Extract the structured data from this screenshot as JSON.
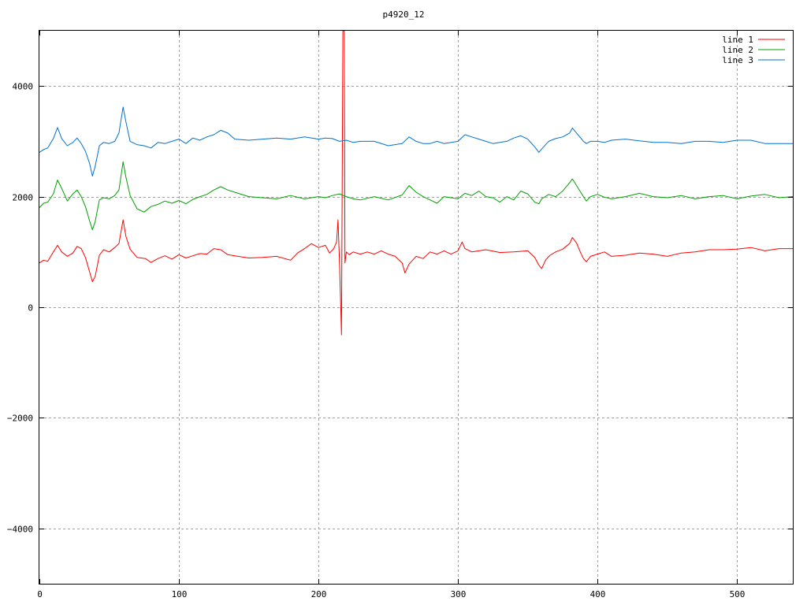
{
  "chart_data": {
    "type": "line",
    "title": "p4920_12",
    "xlabel": "",
    "ylabel": "",
    "xlim": [
      0,
      540
    ],
    "ylim": [
      -5000,
      5000
    ],
    "grid": true,
    "legend_position": "top-right",
    "x_ticks": [
      0,
      100,
      200,
      300,
      400,
      500
    ],
    "y_ticks": [
      -4000,
      -2000,
      0,
      2000,
      4000
    ],
    "x_tick_labels": [
      "0",
      "100",
      "200",
      "300",
      "400",
      "500"
    ],
    "y_tick_labels": [
      "−4000",
      "−2000",
      "0",
      "2000",
      "4000"
    ],
    "series": [
      {
        "name": "line 1",
        "color": "#ff0000",
        "points": [
          [
            0,
            800
          ],
          [
            3,
            850
          ],
          [
            6,
            830
          ],
          [
            10,
            1000
          ],
          [
            13,
            1120
          ],
          [
            16,
            1000
          ],
          [
            20,
            920
          ],
          [
            24,
            980
          ],
          [
            27,
            1100
          ],
          [
            30,
            1060
          ],
          [
            33,
            900
          ],
          [
            36,
            640
          ],
          [
            38,
            460
          ],
          [
            40,
            560
          ],
          [
            43,
            940
          ],
          [
            46,
            1040
          ],
          [
            50,
            1000
          ],
          [
            54,
            1080
          ],
          [
            57,
            1150
          ],
          [
            60,
            1580
          ],
          [
            62,
            1280
          ],
          [
            65,
            1050
          ],
          [
            70,
            900
          ],
          [
            76,
            880
          ],
          [
            80,
            810
          ],
          [
            85,
            880
          ],
          [
            90,
            930
          ],
          [
            95,
            870
          ],
          [
            100,
            950
          ],
          [
            105,
            890
          ],
          [
            110,
            930
          ],
          [
            115,
            970
          ],
          [
            120,
            960
          ],
          [
            125,
            1060
          ],
          [
            130,
            1040
          ],
          [
            135,
            950
          ],
          [
            140,
            930
          ],
          [
            150,
            890
          ],
          [
            160,
            900
          ],
          [
            170,
            920
          ],
          [
            180,
            850
          ],
          [
            185,
            980
          ],
          [
            190,
            1060
          ],
          [
            195,
            1150
          ],
          [
            200,
            1080
          ],
          [
            205,
            1120
          ],
          [
            208,
            980
          ],
          [
            211,
            1060
          ],
          [
            213,
            1180
          ],
          [
            214,
            1580
          ],
          [
            215,
            900
          ],
          [
            216,
            0
          ],
          [
            216.5,
            -500
          ],
          [
            217,
            2200
          ],
          [
            217.5,
            5000
          ],
          [
            218.5,
            5000
          ],
          [
            219,
            800
          ],
          [
            220,
            1000
          ],
          [
            222,
            950
          ],
          [
            225,
            1000
          ],
          [
            230,
            960
          ],
          [
            235,
            1000
          ],
          [
            240,
            960
          ],
          [
            245,
            1020
          ],
          [
            250,
            960
          ],
          [
            255,
            920
          ],
          [
            260,
            800
          ],
          [
            262,
            620
          ],
          [
            265,
            780
          ],
          [
            270,
            920
          ],
          [
            275,
            880
          ],
          [
            280,
            1000
          ],
          [
            285,
            960
          ],
          [
            290,
            1020
          ],
          [
            295,
            960
          ],
          [
            300,
            1020
          ],
          [
            303,
            1180
          ],
          [
            305,
            1060
          ],
          [
            310,
            1000
          ],
          [
            320,
            1040
          ],
          [
            330,
            990
          ],
          [
            340,
            1000
          ],
          [
            350,
            1020
          ],
          [
            355,
            900
          ],
          [
            358,
            760
          ],
          [
            360,
            700
          ],
          [
            363,
            860
          ],
          [
            366,
            940
          ],
          [
            370,
            1000
          ],
          [
            375,
            1050
          ],
          [
            380,
            1150
          ],
          [
            382,
            1260
          ],
          [
            385,
            1160
          ],
          [
            388,
            980
          ],
          [
            390,
            880
          ],
          [
            392,
            820
          ],
          [
            395,
            920
          ],
          [
            400,
            960
          ],
          [
            405,
            1000
          ],
          [
            410,
            920
          ],
          [
            420,
            940
          ],
          [
            430,
            980
          ],
          [
            440,
            960
          ],
          [
            450,
            920
          ],
          [
            460,
            980
          ],
          [
            470,
            1000
          ],
          [
            480,
            1040
          ],
          [
            490,
            1040
          ],
          [
            500,
            1050
          ],
          [
            510,
            1080
          ],
          [
            520,
            1020
          ],
          [
            530,
            1060
          ],
          [
            540,
            1060
          ]
        ]
      },
      {
        "name": "line 2",
        "color": "#00a000",
        "points": [
          [
            0,
            1800
          ],
          [
            3,
            1880
          ],
          [
            6,
            1900
          ],
          [
            10,
            2050
          ],
          [
            13,
            2300
          ],
          [
            16,
            2150
          ],
          [
            20,
            1920
          ],
          [
            24,
            2050
          ],
          [
            27,
            2120
          ],
          [
            30,
            2000
          ],
          [
            33,
            1820
          ],
          [
            36,
            1560
          ],
          [
            38,
            1400
          ],
          [
            40,
            1550
          ],
          [
            43,
            1940
          ],
          [
            46,
            1980
          ],
          [
            50,
            1960
          ],
          [
            54,
            2020
          ],
          [
            57,
            2120
          ],
          [
            60,
            2630
          ],
          [
            62,
            2350
          ],
          [
            65,
            2020
          ],
          [
            70,
            1780
          ],
          [
            75,
            1720
          ],
          [
            80,
            1820
          ],
          [
            85,
            1860
          ],
          [
            90,
            1920
          ],
          [
            95,
            1880
          ],
          [
            100,
            1930
          ],
          [
            105,
            1870
          ],
          [
            110,
            1950
          ],
          [
            115,
            2000
          ],
          [
            120,
            2040
          ],
          [
            125,
            2120
          ],
          [
            130,
            2180
          ],
          [
            135,
            2120
          ],
          [
            140,
            2080
          ],
          [
            150,
            2000
          ],
          [
            160,
            1980
          ],
          [
            170,
            1960
          ],
          [
            180,
            2020
          ],
          [
            190,
            1960
          ],
          [
            200,
            2000
          ],
          [
            205,
            1980
          ],
          [
            210,
            2020
          ],
          [
            215,
            2050
          ],
          [
            220,
            2000
          ],
          [
            225,
            1960
          ],
          [
            230,
            1940
          ],
          [
            240,
            2000
          ],
          [
            250,
            1940
          ],
          [
            260,
            2030
          ],
          [
            265,
            2200
          ],
          [
            270,
            2080
          ],
          [
            275,
            2000
          ],
          [
            280,
            1940
          ],
          [
            285,
            1880
          ],
          [
            290,
            2000
          ],
          [
            300,
            1960
          ],
          [
            305,
            2060
          ],
          [
            310,
            2020
          ],
          [
            315,
            2100
          ],
          [
            320,
            2000
          ],
          [
            325,
            1980
          ],
          [
            330,
            1900
          ],
          [
            335,
            2000
          ],
          [
            340,
            1940
          ],
          [
            345,
            2100
          ],
          [
            350,
            2050
          ],
          [
            355,
            1900
          ],
          [
            358,
            1870
          ],
          [
            360,
            1960
          ],
          [
            365,
            2040
          ],
          [
            370,
            2000
          ],
          [
            375,
            2100
          ],
          [
            380,
            2250
          ],
          [
            382,
            2320
          ],
          [
            385,
            2200
          ],
          [
            390,
            2000
          ],
          [
            392,
            1920
          ],
          [
            395,
            2000
          ],
          [
            400,
            2040
          ],
          [
            405,
            1990
          ],
          [
            410,
            1960
          ],
          [
            420,
            2000
          ],
          [
            430,
            2060
          ],
          [
            440,
            2000
          ],
          [
            450,
            1980
          ],
          [
            460,
            2020
          ],
          [
            470,
            1960
          ],
          [
            480,
            2000
          ],
          [
            490,
            2020
          ],
          [
            500,
            1960
          ],
          [
            510,
            2010
          ],
          [
            520,
            2040
          ],
          [
            530,
            1980
          ],
          [
            540,
            2000
          ]
        ]
      },
      {
        "name": "line 3",
        "color": "#0070d0",
        "points": [
          [
            0,
            2800
          ],
          [
            3,
            2850
          ],
          [
            6,
            2880
          ],
          [
            10,
            3050
          ],
          [
            13,
            3250
          ],
          [
            16,
            3050
          ],
          [
            20,
            2920
          ],
          [
            24,
            2980
          ],
          [
            27,
            3060
          ],
          [
            30,
            2960
          ],
          [
            33,
            2820
          ],
          [
            36,
            2600
          ],
          [
            38,
            2370
          ],
          [
            40,
            2550
          ],
          [
            43,
            2920
          ],
          [
            46,
            2980
          ],
          [
            50,
            2960
          ],
          [
            54,
            3000
          ],
          [
            57,
            3150
          ],
          [
            60,
            3620
          ],
          [
            62,
            3350
          ],
          [
            65,
            3000
          ],
          [
            70,
            2940
          ],
          [
            75,
            2920
          ],
          [
            80,
            2880
          ],
          [
            85,
            2980
          ],
          [
            90,
            2960
          ],
          [
            95,
            3000
          ],
          [
            100,
            3040
          ],
          [
            105,
            2960
          ],
          [
            110,
            3060
          ],
          [
            115,
            3020
          ],
          [
            120,
            3080
          ],
          [
            125,
            3120
          ],
          [
            130,
            3200
          ],
          [
            135,
            3150
          ],
          [
            140,
            3040
          ],
          [
            150,
            3020
          ],
          [
            160,
            3040
          ],
          [
            170,
            3060
          ],
          [
            180,
            3040
          ],
          [
            190,
            3080
          ],
          [
            200,
            3040
          ],
          [
            205,
            3060
          ],
          [
            210,
            3050
          ],
          [
            215,
            3000
          ],
          [
            220,
            3020
          ],
          [
            225,
            2980
          ],
          [
            230,
            3000
          ],
          [
            240,
            3000
          ],
          [
            250,
            2920
          ],
          [
            260,
            2960
          ],
          [
            265,
            3080
          ],
          [
            270,
            3000
          ],
          [
            275,
            2960
          ],
          [
            280,
            2960
          ],
          [
            285,
            3000
          ],
          [
            290,
            2960
          ],
          [
            300,
            3000
          ],
          [
            305,
            3120
          ],
          [
            310,
            3080
          ],
          [
            315,
            3040
          ],
          [
            320,
            3000
          ],
          [
            325,
            2960
          ],
          [
            330,
            2980
          ],
          [
            335,
            3000
          ],
          [
            340,
            3060
          ],
          [
            345,
            3100
          ],
          [
            350,
            3040
          ],
          [
            355,
            2900
          ],
          [
            358,
            2800
          ],
          [
            360,
            2860
          ],
          [
            365,
            3000
          ],
          [
            370,
            3050
          ],
          [
            375,
            3080
          ],
          [
            380,
            3150
          ],
          [
            382,
            3240
          ],
          [
            385,
            3150
          ],
          [
            390,
            3000
          ],
          [
            392,
            2960
          ],
          [
            395,
            3000
          ],
          [
            400,
            3000
          ],
          [
            405,
            2980
          ],
          [
            410,
            3020
          ],
          [
            420,
            3040
          ],
          [
            430,
            3010
          ],
          [
            440,
            2980
          ],
          [
            450,
            2980
          ],
          [
            460,
            2960
          ],
          [
            470,
            3000
          ],
          [
            480,
            3000
          ],
          [
            490,
            2980
          ],
          [
            500,
            3020
          ],
          [
            510,
            3020
          ],
          [
            520,
            2960
          ],
          [
            530,
            2960
          ],
          [
            540,
            2960
          ]
        ]
      }
    ]
  }
}
